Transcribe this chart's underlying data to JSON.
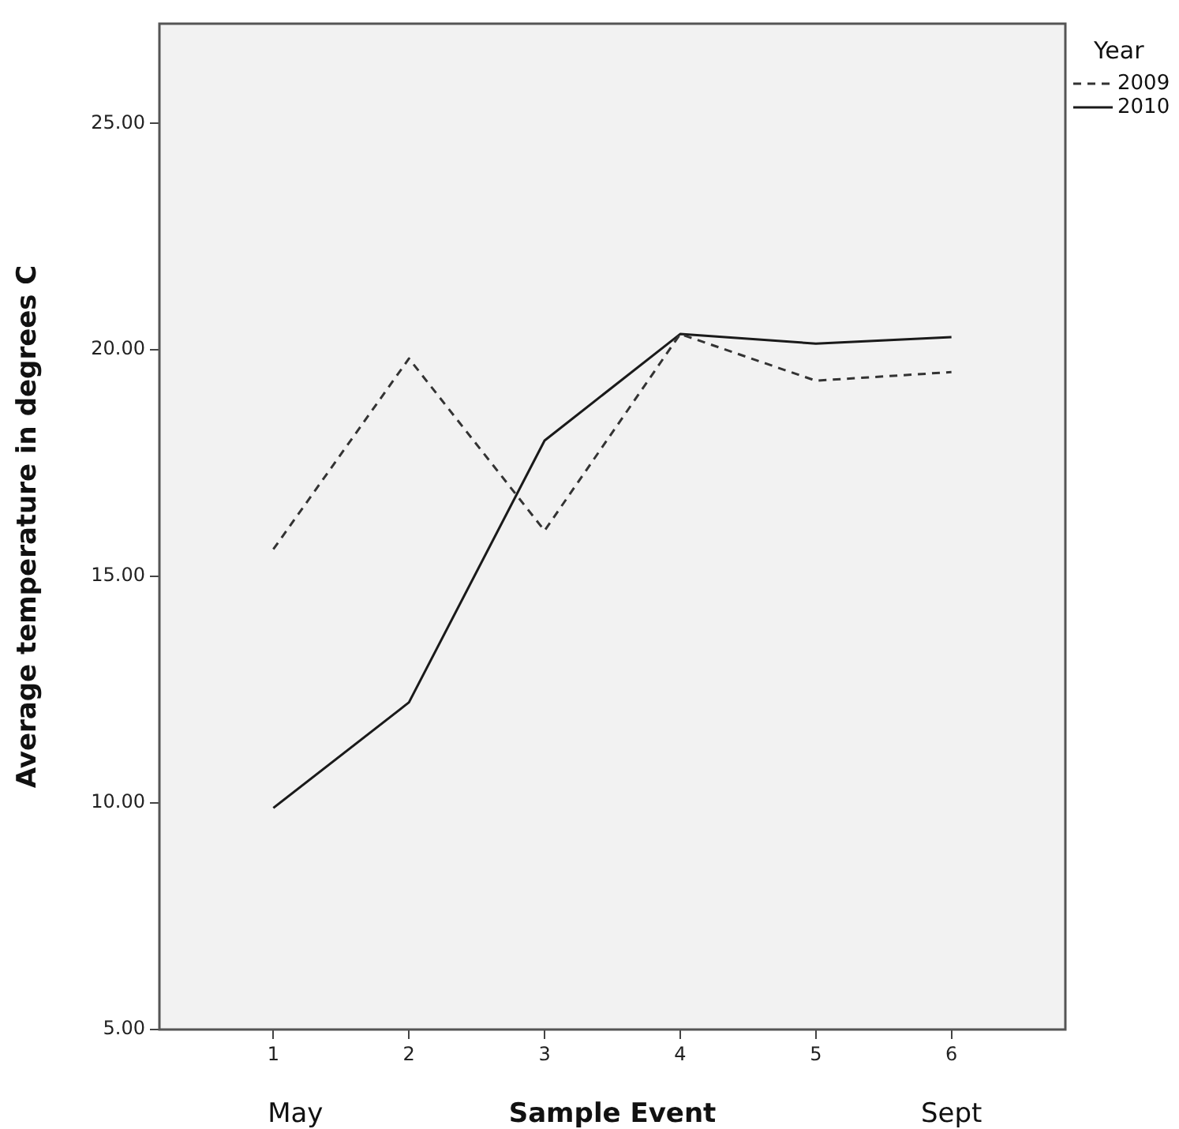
{
  "chart_data": {
    "type": "line",
    "xlabel": "Sample Event",
    "ylabel": "Average temperature in degrees C",
    "legend_title": "Year",
    "x": [
      1,
      2,
      3,
      4,
      5,
      6
    ],
    "series": [
      {
        "name": "2009",
        "color": "#333333",
        "line_style": "dashed",
        "values": [
          15.6,
          19.81,
          16.01,
          20.35,
          19.32,
          19.51
        ]
      },
      {
        "name": "2010",
        "color": "#1a1a1a",
        "line_style": "solid",
        "values": [
          9.89,
          12.22,
          18.0,
          20.35,
          20.14,
          20.28
        ]
      }
    ],
    "xlim": [
      0.16,
      6.84
    ],
    "xticks": [
      1,
      2,
      3,
      4,
      5,
      6
    ],
    "ylim": [
      5,
      27.2
    ],
    "yticks": [
      {
        "value": 5,
        "label": "5.00"
      },
      {
        "value": 10,
        "label": "10.00"
      },
      {
        "value": 15,
        "label": "15.00"
      },
      {
        "value": 20,
        "label": "20.00"
      },
      {
        "value": 25,
        "label": "25.00"
      }
    ],
    "annotations": [
      "May",
      "Sept"
    ],
    "grid": false,
    "legend": "top right",
    "marker": "none"
  }
}
